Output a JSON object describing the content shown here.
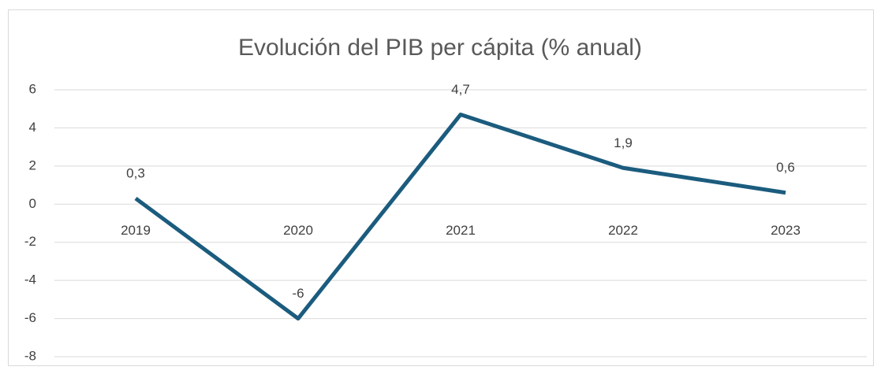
{
  "chart_data": {
    "type": "line",
    "title": "Evolución del PIB per cápita (% anual)",
    "categories": [
      "2019",
      "2020",
      "2021",
      "2022",
      "2023"
    ],
    "values": [
      0.3,
      -6,
      4.7,
      1.9,
      0.6
    ],
    "value_labels": [
      "0,3",
      "-6",
      "4,7",
      "1,9",
      "0,6"
    ],
    "color": "#1b5c7e",
    "ylim": [
      -8,
      6
    ],
    "yticks": [
      -8,
      -6,
      -4,
      -2,
      0,
      2,
      4,
      6
    ],
    "grid": true
  }
}
